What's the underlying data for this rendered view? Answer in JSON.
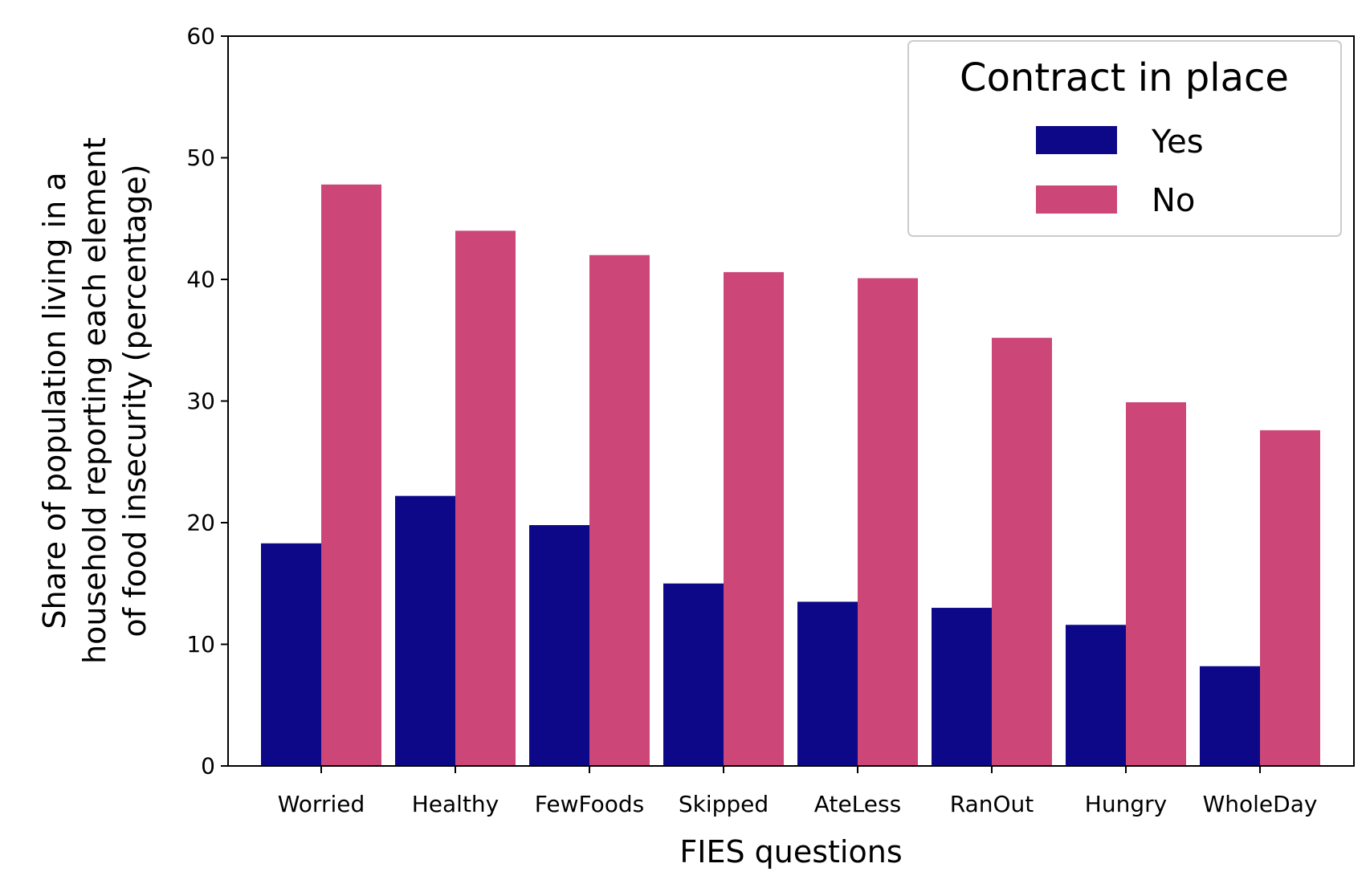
{
  "chart_data": {
    "type": "bar",
    "categories": [
      "Worried",
      "Healthy",
      "FewFoods",
      "Skipped",
      "AteLess",
      "RanOut",
      "Hungry",
      "WholeDay"
    ],
    "series": [
      {
        "name": "Yes",
        "color": "#0d0887",
        "values": [
          18.3,
          22.2,
          19.8,
          15.0,
          13.5,
          13.0,
          11.6,
          8.2
        ]
      },
      {
        "name": "No",
        "color": "#cc4778",
        "values": [
          47.8,
          44.0,
          42.0,
          40.6,
          40.1,
          35.2,
          29.9,
          27.6
        ]
      }
    ],
    "xlabel": "FIES questions",
    "ylabel_lines": [
      "Share of population living in a",
      "household reporting each element",
      "of food insecurity (percentage)"
    ],
    "ylim": [
      0,
      60
    ],
    "yticks": [
      "0",
      "10",
      "20",
      "30",
      "40",
      "50",
      "60"
    ],
    "legend": {
      "title": "Contract in place",
      "placement": "top-right"
    },
    "grid": false
  }
}
